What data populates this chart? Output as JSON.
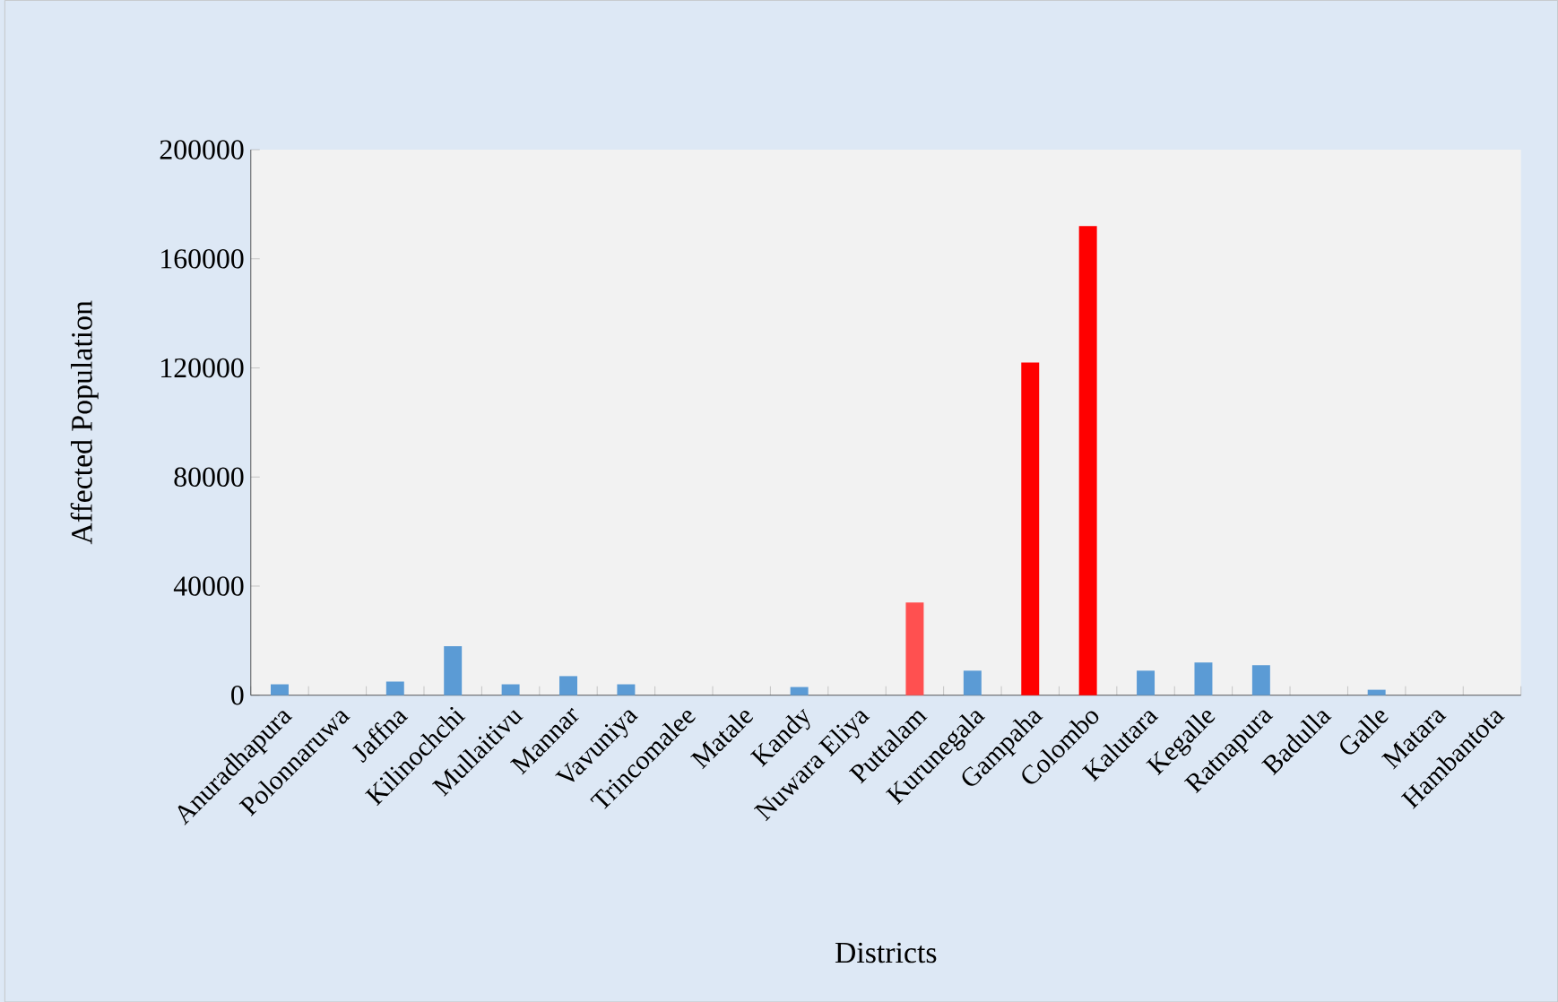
{
  "chart_data": {
    "type": "bar",
    "xlabel": "Districts",
    "ylabel": "Affected Population",
    "categories": [
      "Anuradhapura",
      "Polonnaruwa",
      "Jaffna",
      "Kilinochchi",
      "Mullaitivu",
      "Mannar",
      "Vavuniya",
      "Trincomalee",
      "Matale",
      "Kandy",
      "Nuwara Eliya",
      "Puttalam",
      "Kurunegala",
      "Gampaha",
      "Colombo",
      "Kalutara",
      "Kegalle",
      "Ratnapura",
      "Badulla",
      "Galle",
      "Matara",
      "Hambantota"
    ],
    "values": [
      4000,
      0,
      5000,
      18000,
      4000,
      7000,
      4000,
      0,
      0,
      3000,
      0,
      34000,
      9000,
      122000,
      172000,
      9000,
      12000,
      11000,
      0,
      2000,
      0,
      0
    ],
    "colors": [
      "#5b9bd5",
      "#5b9bd5",
      "#5b9bd5",
      "#5b9bd5",
      "#5b9bd5",
      "#5b9bd5",
      "#5b9bd5",
      "#5b9bd5",
      "#5b9bd5",
      "#5b9bd5",
      "#5b9bd5",
      "#ff5050",
      "#5b9bd5",
      "#ff0000",
      "#ff0000",
      "#5b9bd5",
      "#5b9bd5",
      "#5b9bd5",
      "#5b9bd5",
      "#5b9bd5",
      "#5b9bd5",
      "#5b9bd5"
    ],
    "ylim": [
      0,
      200000
    ],
    "yticks": [
      0,
      40000,
      80000,
      120000,
      160000,
      200000
    ]
  }
}
